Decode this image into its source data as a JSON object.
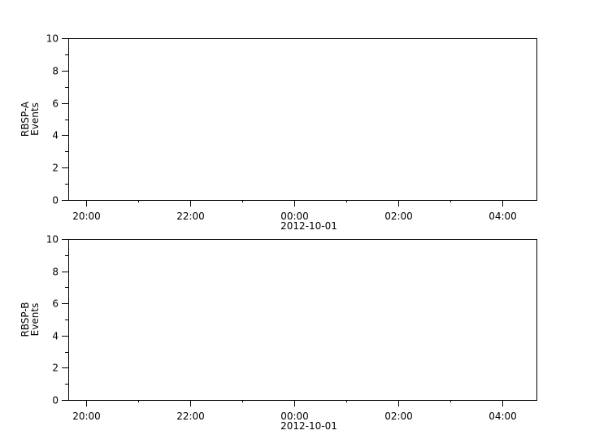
{
  "chart_data": [
    {
      "type": "line",
      "ylabel": [
        "RBSP-A",
        "Events"
      ],
      "ylim": [
        0,
        10
      ],
      "yticks": [
        "0",
        "2",
        "4",
        "6",
        "8",
        "10"
      ],
      "xticks": [
        "20:00",
        "22:00",
        "00:00",
        "02:00",
        "04:00"
      ],
      "xdate_label": "2012-10-01",
      "xlim": [
        "2012-09-30 19:39",
        "2012-10-01 04:39"
      ],
      "series": [],
      "grid": false
    },
    {
      "type": "line",
      "ylabel": [
        "RBSP-B",
        "Events"
      ],
      "ylim": [
        0,
        10
      ],
      "yticks": [
        "0",
        "2",
        "4",
        "6",
        "8",
        "10"
      ],
      "xticks": [
        "20:00",
        "22:00",
        "00:00",
        "02:00",
        "04:00"
      ],
      "xdate_label": "2012-10-01",
      "xlim": [
        "2012-09-30 19:39",
        "2012-10-01 04:39"
      ],
      "series": [],
      "grid": false
    }
  ]
}
